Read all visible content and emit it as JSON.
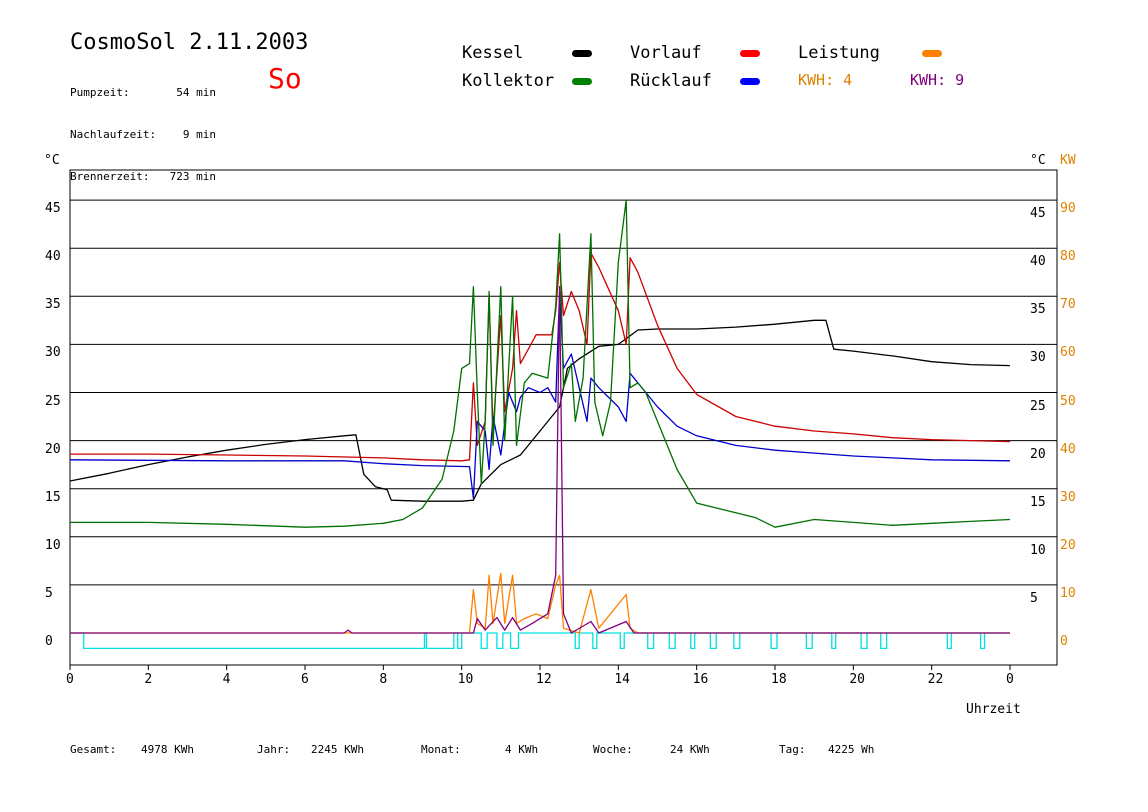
{
  "header": {
    "title": "CosmoSol 2.11.2003",
    "day": "So",
    "stats": [
      {
        "label": "Pumpzeit:",
        "value": "54 min"
      },
      {
        "label": "Nachlaufzeit:",
        "value": "9 min"
      },
      {
        "label": "Brennerzeit:",
        "value": "723 min"
      }
    ]
  },
  "legend": {
    "kessel": {
      "label": "Kessel",
      "color": "#000000"
    },
    "vorlauf": {
      "label": "Vorlauf",
      "color": "#ff0000"
    },
    "leistung": {
      "label": "Leistung",
      "color": "#ff8000"
    },
    "kollektor": {
      "label": "Kollektor",
      "color": "#008000"
    },
    "ruecklauf": {
      "label": "Rücklauf",
      "color": "#0000ff"
    },
    "kwh_orange": {
      "label": "KWH: 4",
      "color": "#ff8000"
    },
    "kwh_purple": {
      "label": "KWH: 9",
      "color": "#800080"
    }
  },
  "footer": {
    "gesamt_label": "Gesamt:",
    "gesamt_value": "4978 KWh",
    "jahr_label": "Jahr:",
    "jahr_value": "2245 KWh",
    "monat_label": "Monat:",
    "monat_value": "4 KWh",
    "woche_label": "Woche:",
    "woche_value": "24 KWh",
    "tag_label": "Tag:",
    "tag_value": "4225 Wh"
  },
  "chart_data": {
    "type": "line",
    "ylabel_left": "°C",
    "ylabel_right_temp": "°C",
    "ylabel_right_power": "KW",
    "xlabel": "Uhrzeit",
    "x_ticks": [
      "0",
      "2",
      "4",
      "6",
      "8",
      "10",
      "12",
      "14",
      "16",
      "18",
      "20",
      "22",
      "0"
    ],
    "y_left_ticks": [
      "0",
      "5",
      "10",
      "15",
      "20",
      "25",
      "30",
      "35",
      "40",
      "45"
    ],
    "y_right_temp_ticks": [
      "5",
      "10",
      "15",
      "20",
      "25",
      "30",
      "35",
      "40",
      "45"
    ],
    "y_right_power_ticks": [
      "0",
      "10",
      "20",
      "30",
      "40",
      "50",
      "60",
      "70",
      "80",
      "90"
    ],
    "xlim": [
      0,
      24
    ],
    "ylim": [
      0,
      50
    ],
    "colors": {
      "kessel": "#000000",
      "vorlauf": "#cc0000",
      "kollektor": "#007000",
      "ruecklauf": "#0000cc",
      "leistung": "#ff8000",
      "kwh": "#800080",
      "pumpe": "#00e0e0"
    },
    "series": [
      {
        "name": "Kessel",
        "key": "kessel",
        "points": [
          [
            0,
            15.8
          ],
          [
            1,
            16.6
          ],
          [
            2,
            17.5
          ],
          [
            3,
            18.3
          ],
          [
            4,
            19.0
          ],
          [
            5,
            19.6
          ],
          [
            6,
            20.1
          ],
          [
            7,
            20.5
          ],
          [
            7.3,
            20.6
          ],
          [
            7.5,
            16.5
          ],
          [
            7.8,
            15.2
          ],
          [
            8.1,
            14.9
          ],
          [
            8.2,
            13.8
          ],
          [
            9,
            13.7
          ],
          [
            10,
            13.7
          ],
          [
            10.3,
            13.8
          ],
          [
            10.5,
            15.5
          ],
          [
            11,
            17.5
          ],
          [
            11.5,
            18.5
          ],
          [
            12,
            21.0
          ],
          [
            12.3,
            22.5
          ],
          [
            12.5,
            23.5
          ],
          [
            12.7,
            27.5
          ],
          [
            13,
            28.5
          ],
          [
            13.5,
            29.8
          ],
          [
            14,
            30.0
          ],
          [
            14.5,
            31.5
          ],
          [
            15,
            31.6
          ],
          [
            16,
            31.6
          ],
          [
            17,
            31.8
          ],
          [
            18,
            32.1
          ],
          [
            19,
            32.5
          ],
          [
            19.3,
            32.5
          ],
          [
            19.5,
            29.5
          ],
          [
            20,
            29.3
          ],
          [
            21,
            28.8
          ],
          [
            22,
            28.2
          ],
          [
            23,
            27.9
          ],
          [
            24,
            27.8
          ]
        ]
      },
      {
        "name": "Vorlauf",
        "key": "vorlauf",
        "points": [
          [
            0,
            18.6
          ],
          [
            2,
            18.6
          ],
          [
            4,
            18.5
          ],
          [
            6,
            18.4
          ],
          [
            8,
            18.2
          ],
          [
            9,
            18.0
          ],
          [
            10,
            17.9
          ],
          [
            10.2,
            18.0
          ],
          [
            10.3,
            26.0
          ],
          [
            10.4,
            19.5
          ],
          [
            10.6,
            22.0
          ],
          [
            10.7,
            35.0
          ],
          [
            10.8,
            21.0
          ],
          [
            11,
            33.0
          ],
          [
            11.1,
            23.0
          ],
          [
            11.3,
            27.5
          ],
          [
            11.4,
            33.5
          ],
          [
            11.5,
            28.0
          ],
          [
            11.7,
            29.5
          ],
          [
            11.9,
            31.0
          ],
          [
            12.3,
            31.0
          ],
          [
            12.4,
            33.5
          ],
          [
            12.5,
            38.5
          ],
          [
            12.6,
            33.0
          ],
          [
            12.8,
            35.5
          ],
          [
            13,
            33.5
          ],
          [
            13.2,
            30.0
          ],
          [
            13.3,
            39.5
          ],
          [
            13.5,
            38.0
          ],
          [
            14,
            33.5
          ],
          [
            14.2,
            30.0
          ],
          [
            14.3,
            39.0
          ],
          [
            14.5,
            37.5
          ],
          [
            15,
            32.0
          ],
          [
            15.5,
            27.5
          ],
          [
            16,
            24.8
          ],
          [
            17,
            22.5
          ],
          [
            18,
            21.5
          ],
          [
            19,
            21.0
          ],
          [
            20,
            20.7
          ],
          [
            21,
            20.3
          ],
          [
            22,
            20.1
          ],
          [
            23,
            20.0
          ],
          [
            24,
            19.9
          ]
        ]
      },
      {
        "name": "Rücklauf",
        "key": "ruecklauf",
        "points": [
          [
            0,
            18.0
          ],
          [
            4,
            17.9
          ],
          [
            7,
            17.9
          ],
          [
            8,
            17.6
          ],
          [
            9,
            17.4
          ],
          [
            10.2,
            17.3
          ],
          [
            10.3,
            14.0
          ],
          [
            10.4,
            22.0
          ],
          [
            10.6,
            21.0
          ],
          [
            10.7,
            17.0
          ],
          [
            10.8,
            22.5
          ],
          [
            11,
            18.5
          ],
          [
            11.2,
            25.0
          ],
          [
            11.4,
            23.0
          ],
          [
            11.5,
            24.5
          ],
          [
            11.7,
            25.5
          ],
          [
            12,
            25.0
          ],
          [
            12.2,
            25.5
          ],
          [
            12.4,
            24.0
          ],
          [
            12.5,
            35.5
          ],
          [
            12.6,
            27.5
          ],
          [
            12.8,
            29.0
          ],
          [
            13,
            25.5
          ],
          [
            13.2,
            22.0
          ],
          [
            13.3,
            26.5
          ],
          [
            13.5,
            25.5
          ],
          [
            14,
            23.5
          ],
          [
            14.2,
            22.0
          ],
          [
            14.3,
            27.0
          ],
          [
            14.5,
            26.0
          ],
          [
            15,
            23.5
          ],
          [
            15.5,
            21.5
          ],
          [
            16,
            20.5
          ],
          [
            17,
            19.5
          ],
          [
            18,
            19.0
          ],
          [
            19,
            18.7
          ],
          [
            20,
            18.4
          ],
          [
            21,
            18.2
          ],
          [
            22,
            18.0
          ],
          [
            24,
            17.9
          ]
        ]
      },
      {
        "name": "Kollektor",
        "key": "kollektor",
        "points": [
          [
            0,
            11.5
          ],
          [
            2,
            11.5
          ],
          [
            4,
            11.3
          ],
          [
            6,
            11.0
          ],
          [
            7,
            11.1
          ],
          [
            8,
            11.4
          ],
          [
            8.5,
            11.8
          ],
          [
            9,
            13.0
          ],
          [
            9.5,
            16.0
          ],
          [
            9.8,
            21.0
          ],
          [
            10,
            27.5
          ],
          [
            10.2,
            28.0
          ],
          [
            10.3,
            36.0
          ],
          [
            10.4,
            25.0
          ],
          [
            10.5,
            15.5
          ],
          [
            10.6,
            22.0
          ],
          [
            10.7,
            35.5
          ],
          [
            10.8,
            19.5
          ],
          [
            11,
            36.0
          ],
          [
            11.1,
            20.0
          ],
          [
            11.3,
            35.0
          ],
          [
            11.4,
            19.5
          ],
          [
            11.6,
            26.0
          ],
          [
            11.8,
            27.0
          ],
          [
            12.2,
            26.5
          ],
          [
            12.4,
            34.0
          ],
          [
            12.5,
            41.5
          ],
          [
            12.6,
            25.5
          ],
          [
            12.8,
            28.0
          ],
          [
            12.9,
            22.0
          ],
          [
            13.1,
            26.5
          ],
          [
            13.3,
            41.5
          ],
          [
            13.4,
            24.0
          ],
          [
            13.6,
            20.5
          ],
          [
            13.8,
            24.0
          ],
          [
            14,
            38.5
          ],
          [
            14.2,
            45.0
          ],
          [
            14.3,
            25.5
          ],
          [
            14.5,
            26.0
          ],
          [
            14.7,
            25.0
          ],
          [
            15,
            22.0
          ],
          [
            15.5,
            17.0
          ],
          [
            16,
            13.5
          ],
          [
            17,
            12.5
          ],
          [
            17.5,
            12.0
          ],
          [
            18,
            11.0
          ],
          [
            19,
            11.8
          ],
          [
            20,
            11.5
          ],
          [
            21,
            11.2
          ],
          [
            22,
            11.4
          ],
          [
            23,
            11.6
          ],
          [
            24,
            11.8
          ]
        ]
      },
      {
        "name": "Leistung",
        "key": "leistung",
        "points": [
          [
            0,
            0
          ],
          [
            10.2,
            0
          ],
          [
            10.3,
            4.5
          ],
          [
            10.4,
            1.0
          ],
          [
            10.6,
            0.5
          ],
          [
            10.7,
            6.0
          ],
          [
            10.8,
            1.0
          ],
          [
            11,
            6.2
          ],
          [
            11.1,
            1.0
          ],
          [
            11.3,
            6.0
          ],
          [
            11.4,
            1.0
          ],
          [
            11.6,
            1.5
          ],
          [
            11.9,
            2.0
          ],
          [
            12.2,
            1.5
          ],
          [
            12.4,
            5.0
          ],
          [
            12.5,
            6.0
          ],
          [
            12.6,
            0.5
          ],
          [
            13,
            0
          ],
          [
            13.3,
            4.5
          ],
          [
            13.5,
            0.5
          ],
          [
            14.2,
            4.0
          ],
          [
            14.3,
            0.5
          ],
          [
            14.5,
            0
          ],
          [
            24,
            0
          ]
        ]
      },
      {
        "name": "KWH",
        "key": "kwh",
        "points": [
          [
            0,
            0
          ],
          [
            7.0,
            0
          ],
          [
            7.1,
            0.3
          ],
          [
            7.2,
            0
          ],
          [
            10.3,
            0
          ],
          [
            10.4,
            1.5
          ],
          [
            10.6,
            0.3
          ],
          [
            10.9,
            1.6
          ],
          [
            11.1,
            0.3
          ],
          [
            11.3,
            1.6
          ],
          [
            11.5,
            0.3
          ],
          [
            11.8,
            1.0
          ],
          [
            12.2,
            2.0
          ],
          [
            12.4,
            6.0
          ],
          [
            12.5,
            36.0
          ],
          [
            12.6,
            2.0
          ],
          [
            12.8,
            0
          ],
          [
            13.3,
            1.2
          ],
          [
            13.5,
            0
          ],
          [
            14.2,
            1.2
          ],
          [
            14.4,
            0
          ],
          [
            24,
            0
          ]
        ]
      }
    ],
    "pumpe": {
      "high_level": 0,
      "low_level": -1.6,
      "low_intervals": [
        [
          0.35,
          9.05
        ],
        [
          9.1,
          9.8
        ],
        [
          9.9,
          10.0
        ],
        [
          10.5,
          10.65
        ],
        [
          10.9,
          11.05
        ],
        [
          11.25,
          11.45
        ],
        [
          12.9,
          13.0
        ],
        [
          13.35,
          13.45
        ],
        [
          14.05,
          14.15
        ],
        [
          14.75,
          14.9
        ],
        [
          15.3,
          15.45
        ],
        [
          15.85,
          15.95
        ],
        [
          16.35,
          16.5
        ],
        [
          16.95,
          17.1
        ],
        [
          17.9,
          18.05
        ],
        [
          18.8,
          18.95
        ],
        [
          19.45,
          19.55
        ],
        [
          20.2,
          20.35
        ],
        [
          20.7,
          20.85
        ],
        [
          22.4,
          22.5
        ],
        [
          23.25,
          23.35
        ]
      ]
    }
  }
}
